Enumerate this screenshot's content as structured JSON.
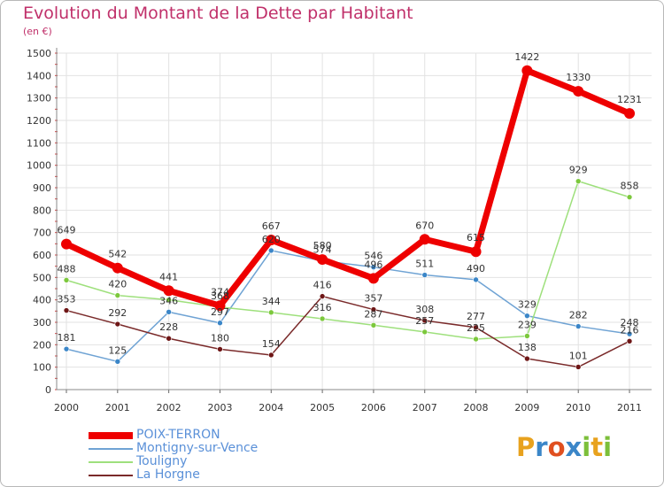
{
  "title": "Evolution du Montant de la Dette par Habitant",
  "subtitle": "(en €)",
  "logo": {
    "text": "Proxiti",
    "letters": [
      "P",
      "r",
      "o",
      "x",
      "i",
      "t",
      "i"
    ],
    "colors": [
      "#e8a21e",
      "#3b86c8",
      "#e05020",
      "#3b86c8",
      "#7cbf3a",
      "#e8a21e",
      "#7cbf3a"
    ]
  },
  "chart_data": {
    "type": "line",
    "x": [
      "2000",
      "2001",
      "2002",
      "2003",
      "2004",
      "2005",
      "2006",
      "2007",
      "2008",
      "2009",
      "2010",
      "2011"
    ],
    "ylim": [
      0,
      1500
    ],
    "yticks": [
      "0",
      "100",
      "200",
      "300",
      "400",
      "500",
      "600",
      "700",
      "800",
      "900",
      "1000",
      "1100",
      "1200",
      "1300",
      "1400",
      "1500"
    ],
    "grid": true,
    "legend_position": "bottom-left",
    "series": [
      {
        "name": "POIX-TERRON",
        "color": "#ee0000",
        "marker": "#ee0000",
        "width": 7,
        "values": [
          649,
          542,
          441,
          374,
          667,
          580,
          496,
          670,
          615,
          1422,
          1330,
          1231
        ],
        "labels": [
          "649",
          "542",
          "441",
          "374",
          "667",
          "580",
          "496",
          "670",
          "615",
          "1422",
          "1330",
          "1231"
        ]
      },
      {
        "name": "Montigny-sur-Vence",
        "color": "#6fa3d4",
        "marker": "#3b86c8",
        "width": 1.5,
        "values": [
          181,
          125,
          346,
          297,
          620,
          574,
          546,
          511,
          490,
          329,
          282,
          248
        ],
        "labels": [
          "181",
          "125",
          "346",
          "297",
          "620",
          "574",
          "546",
          "511",
          "490",
          "329",
          "282",
          "248"
        ]
      },
      {
        "name": "Touligny",
        "color": "#9ee07c",
        "marker": "#7cc83c",
        "width": 1.5,
        "values": [
          488,
          420,
          400,
          368,
          344,
          316,
          287,
          257,
          225,
          239,
          929,
          858
        ],
        "labels": [
          "488",
          "420",
          "",
          "368",
          "344",
          "316",
          "287",
          "257",
          "225",
          "239",
          "929",
          "858"
        ]
      },
      {
        "name": "La Horgne",
        "color": "#7a2a2a",
        "marker": "#6e1616",
        "width": 1.5,
        "values": [
          353,
          292,
          228,
          180,
          154,
          416,
          357,
          308,
          277,
          138,
          101,
          216
        ],
        "labels": [
          "353",
          "292",
          "228",
          "180",
          "154",
          "416",
          "357",
          "308",
          "277",
          "138",
          "101",
          "216"
        ]
      }
    ]
  }
}
